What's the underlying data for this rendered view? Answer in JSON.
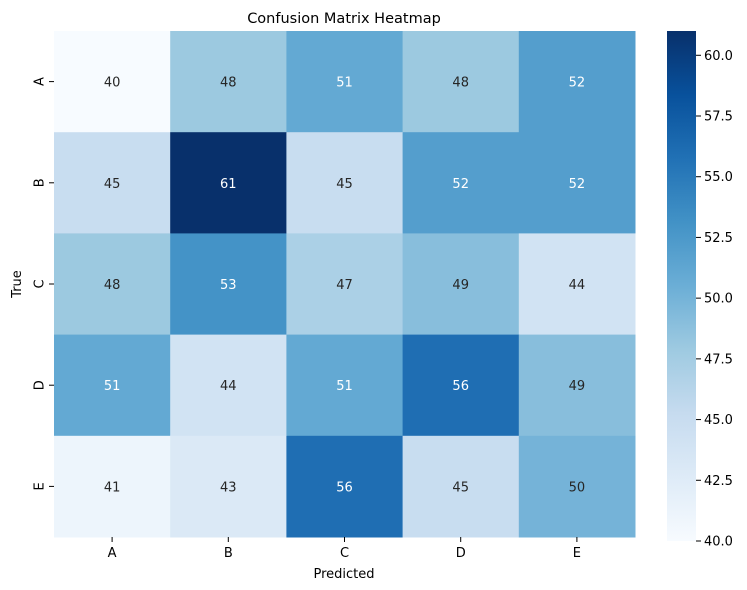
{
  "chart_data": {
    "type": "heatmap",
    "title": "Confusion Matrix Heatmap",
    "xlabel": "Predicted",
    "ylabel": "True",
    "x_categories": [
      "A",
      "B",
      "C",
      "D",
      "E"
    ],
    "y_categories": [
      "A",
      "B",
      "C",
      "D",
      "E"
    ],
    "values": [
      [
        40,
        48,
        51,
        48,
        52
      ],
      [
        45,
        61,
        45,
        52,
        52
      ],
      [
        48,
        53,
        47,
        49,
        44
      ],
      [
        51,
        44,
        51,
        56,
        49
      ],
      [
        41,
        43,
        56,
        45,
        50
      ]
    ],
    "colorbar": {
      "min": 40,
      "max": 61,
      "ticks": [
        "40.0",
        "42.5",
        "45.0",
        "47.5",
        "50.0",
        "52.5",
        "55.0",
        "57.5",
        "60.0"
      ],
      "colormap": "Blues"
    },
    "annotations": true
  }
}
